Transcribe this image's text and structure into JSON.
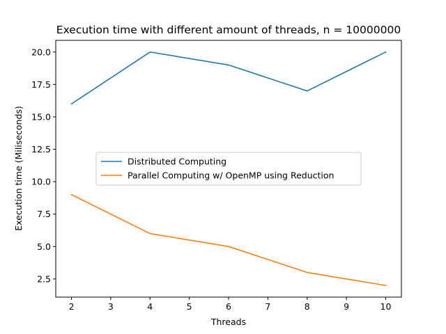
{
  "chart_data": {
    "type": "line",
    "title": "Execution time with different amount of threads, n = 10000000",
    "xlabel": "Threads",
    "ylabel": "Execution time (Miliseconds)",
    "x": [
      2,
      4,
      6,
      8,
      10
    ],
    "xticks": [
      "2",
      "3",
      "4",
      "5",
      "6",
      "7",
      "8",
      "9",
      "10"
    ],
    "yticks": [
      "2.5",
      "5.0",
      "7.5",
      "10.0",
      "12.5",
      "15.0",
      "17.5",
      "20.0"
    ],
    "xlim": [
      1.6,
      10.4
    ],
    "ylim": [
      1.1,
      20.9
    ],
    "grid": false,
    "legend_position": "center-left",
    "series": [
      {
        "name": "Distributed Computing",
        "color": "#1f77b4",
        "values": [
          16,
          20,
          19,
          17,
          20
        ]
      },
      {
        "name": "Parallel Computing w/ OpenMP using Reduction",
        "color": "#ff7f0e",
        "values": [
          9,
          6,
          5,
          3,
          2
        ]
      }
    ]
  }
}
